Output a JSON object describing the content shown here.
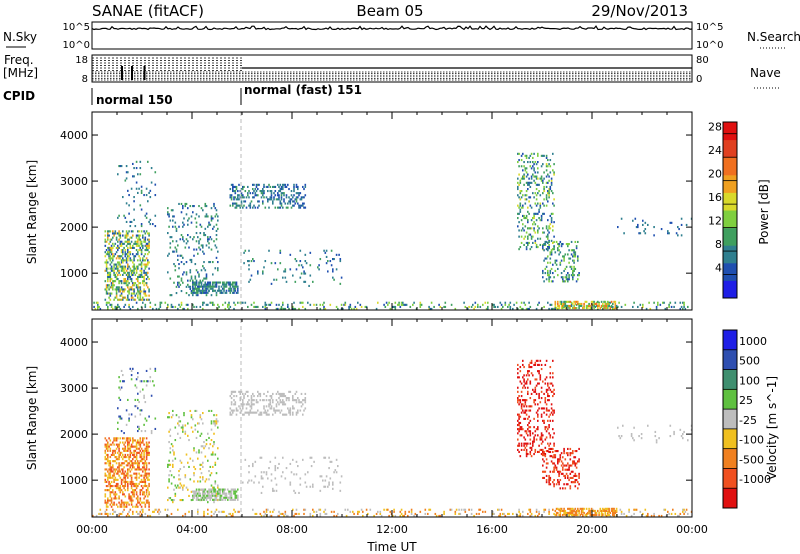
{
  "header": {
    "title": "SANAE (fitACF)",
    "beam": "Beam 05",
    "date": "29/Nov/2013"
  },
  "top_panels": {
    "nsky_label": "N.Sky",
    "nsky_top": "10^5",
    "nsky_bottom": "10^0",
    "nsearch_label": "N.Search",
    "nsearch_top": "10^5",
    "nsearch_bottom": "10^0",
    "freq_label": "Freq.",
    "freq_unit": "[MHz]",
    "freq_top": "18",
    "freq_bottom": "8",
    "nave_label": "Nave",
    "nave_top": "80",
    "nave_bottom": "0",
    "cpid_label": "CPID",
    "modes": [
      {
        "name": "normal 150",
        "start_hour": 0,
        "end_hour": 6
      },
      {
        "name": "normal (fast) 151",
        "start_hour": 6,
        "end_hour": 24
      }
    ]
  },
  "chart_data": [
    {
      "type": "heatmap",
      "panel": "power",
      "ylabel": "Slant Range [km]",
      "xlabel": "Time UT",
      "ylim": [
        200,
        4500
      ],
      "xlim_hours": [
        0,
        24
      ],
      "x_tick_labels": [
        "00:00",
        "04:00",
        "08:00",
        "12:00",
        "16:00",
        "20:00",
        "00:00"
      ],
      "y_ticks": [
        1000,
        2000,
        3000,
        4000
      ],
      "y_tick_labels": [
        "1000",
        "2000",
        "3000",
        "4000"
      ],
      "colorbar": {
        "label": "Power [dB]",
        "range": [
          0,
          30
        ],
        "ticks": [
          4,
          8,
          12,
          16,
          20,
          24,
          28
        ],
        "tick_labels": [
          "4",
          "8",
          "12",
          "16",
          "20",
          "24",
          "28"
        ],
        "colors": [
          "#1f1fe6",
          "#1f4fb0",
          "#2f7f8f",
          "#3f9f5f",
          "#7fcf3f",
          "#d9d92a",
          "#f0a020",
          "#f07020",
          "#e04020",
          "#e01010"
        ]
      },
      "regions": [
        {
          "t0": 0.5,
          "t1": 2.3,
          "r0": 400,
          "r1": 1900,
          "v0": 4,
          "v1": 20,
          "density": 0.45
        },
        {
          "t0": 1.0,
          "t1": 2.5,
          "r0": 2000,
          "r1": 3400,
          "v0": 4,
          "v1": 10,
          "density": 0.08
        },
        {
          "t0": 3.0,
          "t1": 5.0,
          "r0": 500,
          "r1": 2500,
          "v0": 4,
          "v1": 12,
          "density": 0.12
        },
        {
          "t0": 4.0,
          "t1": 5.8,
          "r0": 550,
          "r1": 800,
          "v0": 4,
          "v1": 12,
          "density": 0.7
        },
        {
          "t0": 5.5,
          "t1": 8.5,
          "r0": 2400,
          "r1": 2900,
          "v0": 4,
          "v1": 10,
          "density": 0.3
        },
        {
          "t0": 6.0,
          "t1": 10.0,
          "r0": 700,
          "r1": 1500,
          "v0": 4,
          "v1": 10,
          "density": 0.06
        },
        {
          "t0": 0.0,
          "t1": 24.0,
          "r0": 200,
          "r1": 350,
          "v0": 4,
          "v1": 16,
          "density": 0.18
        },
        {
          "t0": 17.0,
          "t1": 18.5,
          "r0": 1500,
          "r1": 3600,
          "v0": 4,
          "v1": 16,
          "density": 0.22
        },
        {
          "t0": 18.0,
          "t1": 19.5,
          "r0": 800,
          "r1": 1700,
          "v0": 4,
          "v1": 14,
          "density": 0.25
        },
        {
          "t0": 18.5,
          "t1": 21.0,
          "r0": 220,
          "r1": 400,
          "v0": 8,
          "v1": 24,
          "density": 0.6
        },
        {
          "t0": 21.0,
          "t1": 24.0,
          "r0": 1800,
          "r1": 2200,
          "v0": 4,
          "v1": 8,
          "density": 0.06
        }
      ]
    },
    {
      "type": "heatmap",
      "panel": "velocity",
      "ylabel": "Slant Range [km]",
      "xlabel": "Time UT",
      "ylim": [
        200,
        4500
      ],
      "xlim_hours": [
        0,
        24
      ],
      "x_tick_labels": [
        "00:00",
        "04:00",
        "08:00",
        "12:00",
        "16:00",
        "20:00",
        "00:00"
      ],
      "y_ticks": [
        1000,
        2000,
        3000,
        4000
      ],
      "y_tick_labels": [
        "1000",
        "2000",
        "3000",
        "4000"
      ],
      "colorbar": {
        "label": "Velocity [m s^-1]",
        "tick_labels": [
          "1000",
          "500",
          "100",
          "25",
          "-25",
          "-100",
          "-500",
          "-1000"
        ],
        "colors": [
          "#1f1fe6",
          "#2f4fb0",
          "#3f8f6f",
          "#5fc040",
          "#bdbdbd",
          "#f0c020",
          "#f08020",
          "#f05020",
          "#e01010"
        ]
      },
      "regions": [
        {
          "t0": 0.5,
          "t1": 2.3,
          "r0": 400,
          "r1": 1900,
          "c": [
            5,
            6,
            7
          ],
          "density": 0.45
        },
        {
          "t0": 1.0,
          "t1": 2.5,
          "r0": 2000,
          "r1": 3400,
          "c": [
            1,
            3,
            4
          ],
          "density": 0.08
        },
        {
          "t0": 3.0,
          "t1": 5.0,
          "r0": 500,
          "r1": 2500,
          "c": [
            3,
            4,
            5
          ],
          "density": 0.12
        },
        {
          "t0": 4.0,
          "t1": 5.8,
          "r0": 550,
          "r1": 800,
          "c": [
            4,
            4,
            3
          ],
          "density": 0.7
        },
        {
          "t0": 5.5,
          "t1": 8.5,
          "r0": 2400,
          "r1": 2900,
          "c": [
            4,
            4,
            4
          ],
          "density": 0.3
        },
        {
          "t0": 6.0,
          "t1": 10.0,
          "r0": 700,
          "r1": 1500,
          "c": [
            4,
            4
          ],
          "density": 0.06
        },
        {
          "t0": 0.0,
          "t1": 24.0,
          "r0": 200,
          "r1": 350,
          "c": [
            4,
            5,
            6
          ],
          "density": 0.18
        },
        {
          "t0": 17.0,
          "t1": 18.5,
          "r0": 1500,
          "r1": 3600,
          "c": [
            7,
            8,
            8
          ],
          "density": 0.22
        },
        {
          "t0": 18.0,
          "t1": 19.5,
          "r0": 800,
          "r1": 1700,
          "c": [
            7,
            8
          ],
          "density": 0.25
        },
        {
          "t0": 18.5,
          "t1": 21.0,
          "r0": 220,
          "r1": 400,
          "c": [
            5,
            6,
            6
          ],
          "density": 0.6
        },
        {
          "t0": 21.0,
          "t1": 24.0,
          "r0": 1800,
          "r1": 2200,
          "c": [
            4
          ],
          "density": 0.06
        }
      ]
    }
  ]
}
